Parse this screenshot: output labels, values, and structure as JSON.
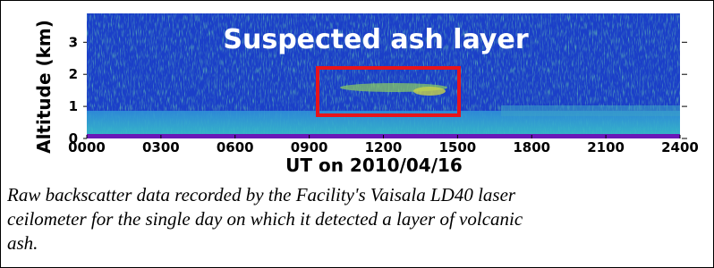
{
  "chart_data": {
    "type": "heatmap",
    "annotation": "Suspected ash layer",
    "xlabel": "UT on 2010/04/16",
    "ylabel": "Altitude (km)",
    "xlim": [
      0,
      24
    ],
    "xticks": [
      {
        "value": 0,
        "label": "0000"
      },
      {
        "value": 3,
        "label": "0300"
      },
      {
        "value": 6,
        "label": "0600"
      },
      {
        "value": 9,
        "label": "0900"
      },
      {
        "value": 12,
        "label": "1200"
      },
      {
        "value": 15,
        "label": "1500"
      },
      {
        "value": 18,
        "label": "1800"
      },
      {
        "value": 21,
        "label": "2100"
      },
      {
        "value": 24,
        "label": "2400"
      }
    ],
    "ylim": [
      0,
      3.9
    ],
    "yticks": [
      0,
      1,
      2,
      3
    ]
  },
  "caption": [
    "Raw backscatter data recorded by the Facility's Vaisala LD40 laser",
    "ceilometer for the single day on which it detected a layer of volcanic",
    "ash."
  ]
}
